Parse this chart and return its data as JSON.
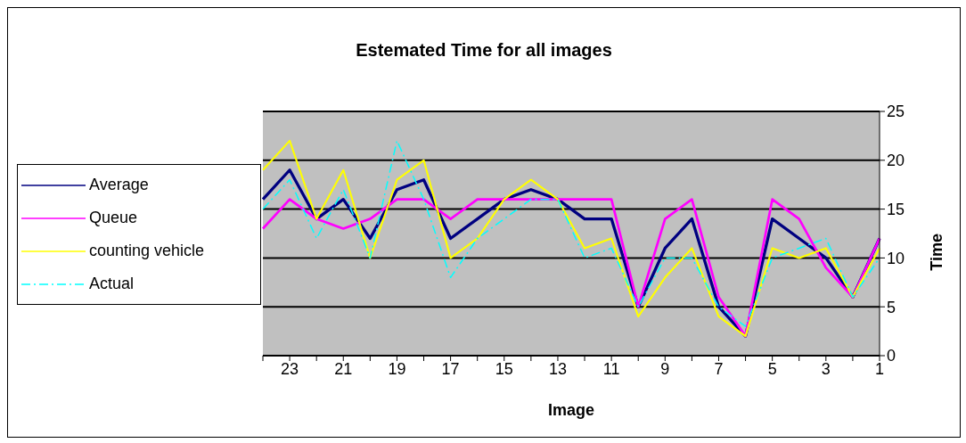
{
  "chart_data": {
    "type": "line",
    "title": "Estemated Time for all images",
    "xlabel": "Image",
    "ylabel": "Time",
    "categories": [
      null,
      "23",
      null,
      "21",
      null,
      "19",
      null,
      "17",
      null,
      "15",
      null,
      "13",
      null,
      "11",
      null,
      "9",
      null,
      "7",
      null,
      "5",
      null,
      "3",
      null,
      "1"
    ],
    "series": [
      {
        "name": "Average",
        "color": "#000080",
        "line_style": "solid",
        "values": [
          16,
          19,
          14,
          16,
          12,
          17,
          18,
          12,
          14,
          16,
          17,
          16,
          14,
          14,
          5,
          11,
          14,
          5,
          2,
          14,
          12,
          10,
          6,
          12
        ]
      },
      {
        "name": "Queue",
        "color": "#ff00ff",
        "line_style": "solid",
        "values": [
          13,
          16,
          14,
          13,
          14,
          16,
          16,
          14,
          16,
          16,
          16,
          16,
          16,
          16,
          5,
          14,
          16,
          6,
          2,
          16,
          14,
          9,
          6,
          12
        ]
      },
      {
        "name": "counting vehicle",
        "color": "#ffff00",
        "line_style": "solid",
        "values": [
          19,
          22,
          14,
          19,
          10,
          18,
          20,
          10,
          12,
          16,
          18,
          16,
          11,
          12,
          4,
          8,
          11,
          4,
          2,
          11,
          10,
          11,
          6,
          11
        ]
      },
      {
        "name": "Actual",
        "color": "#00ffff",
        "line_style": "dashdot",
        "values": [
          15,
          18,
          12,
          17,
          10,
          22,
          16,
          8,
          12,
          14,
          16,
          16,
          10,
          11,
          5,
          10,
          10,
          5,
          3,
          10,
          11,
          12,
          6,
          10
        ]
      }
    ],
    "ylim": [
      0,
      25
    ],
    "yticks": [
      0,
      5,
      10,
      15,
      20,
      25
    ],
    "grid": "y",
    "legend": "left",
    "marker": "none"
  }
}
